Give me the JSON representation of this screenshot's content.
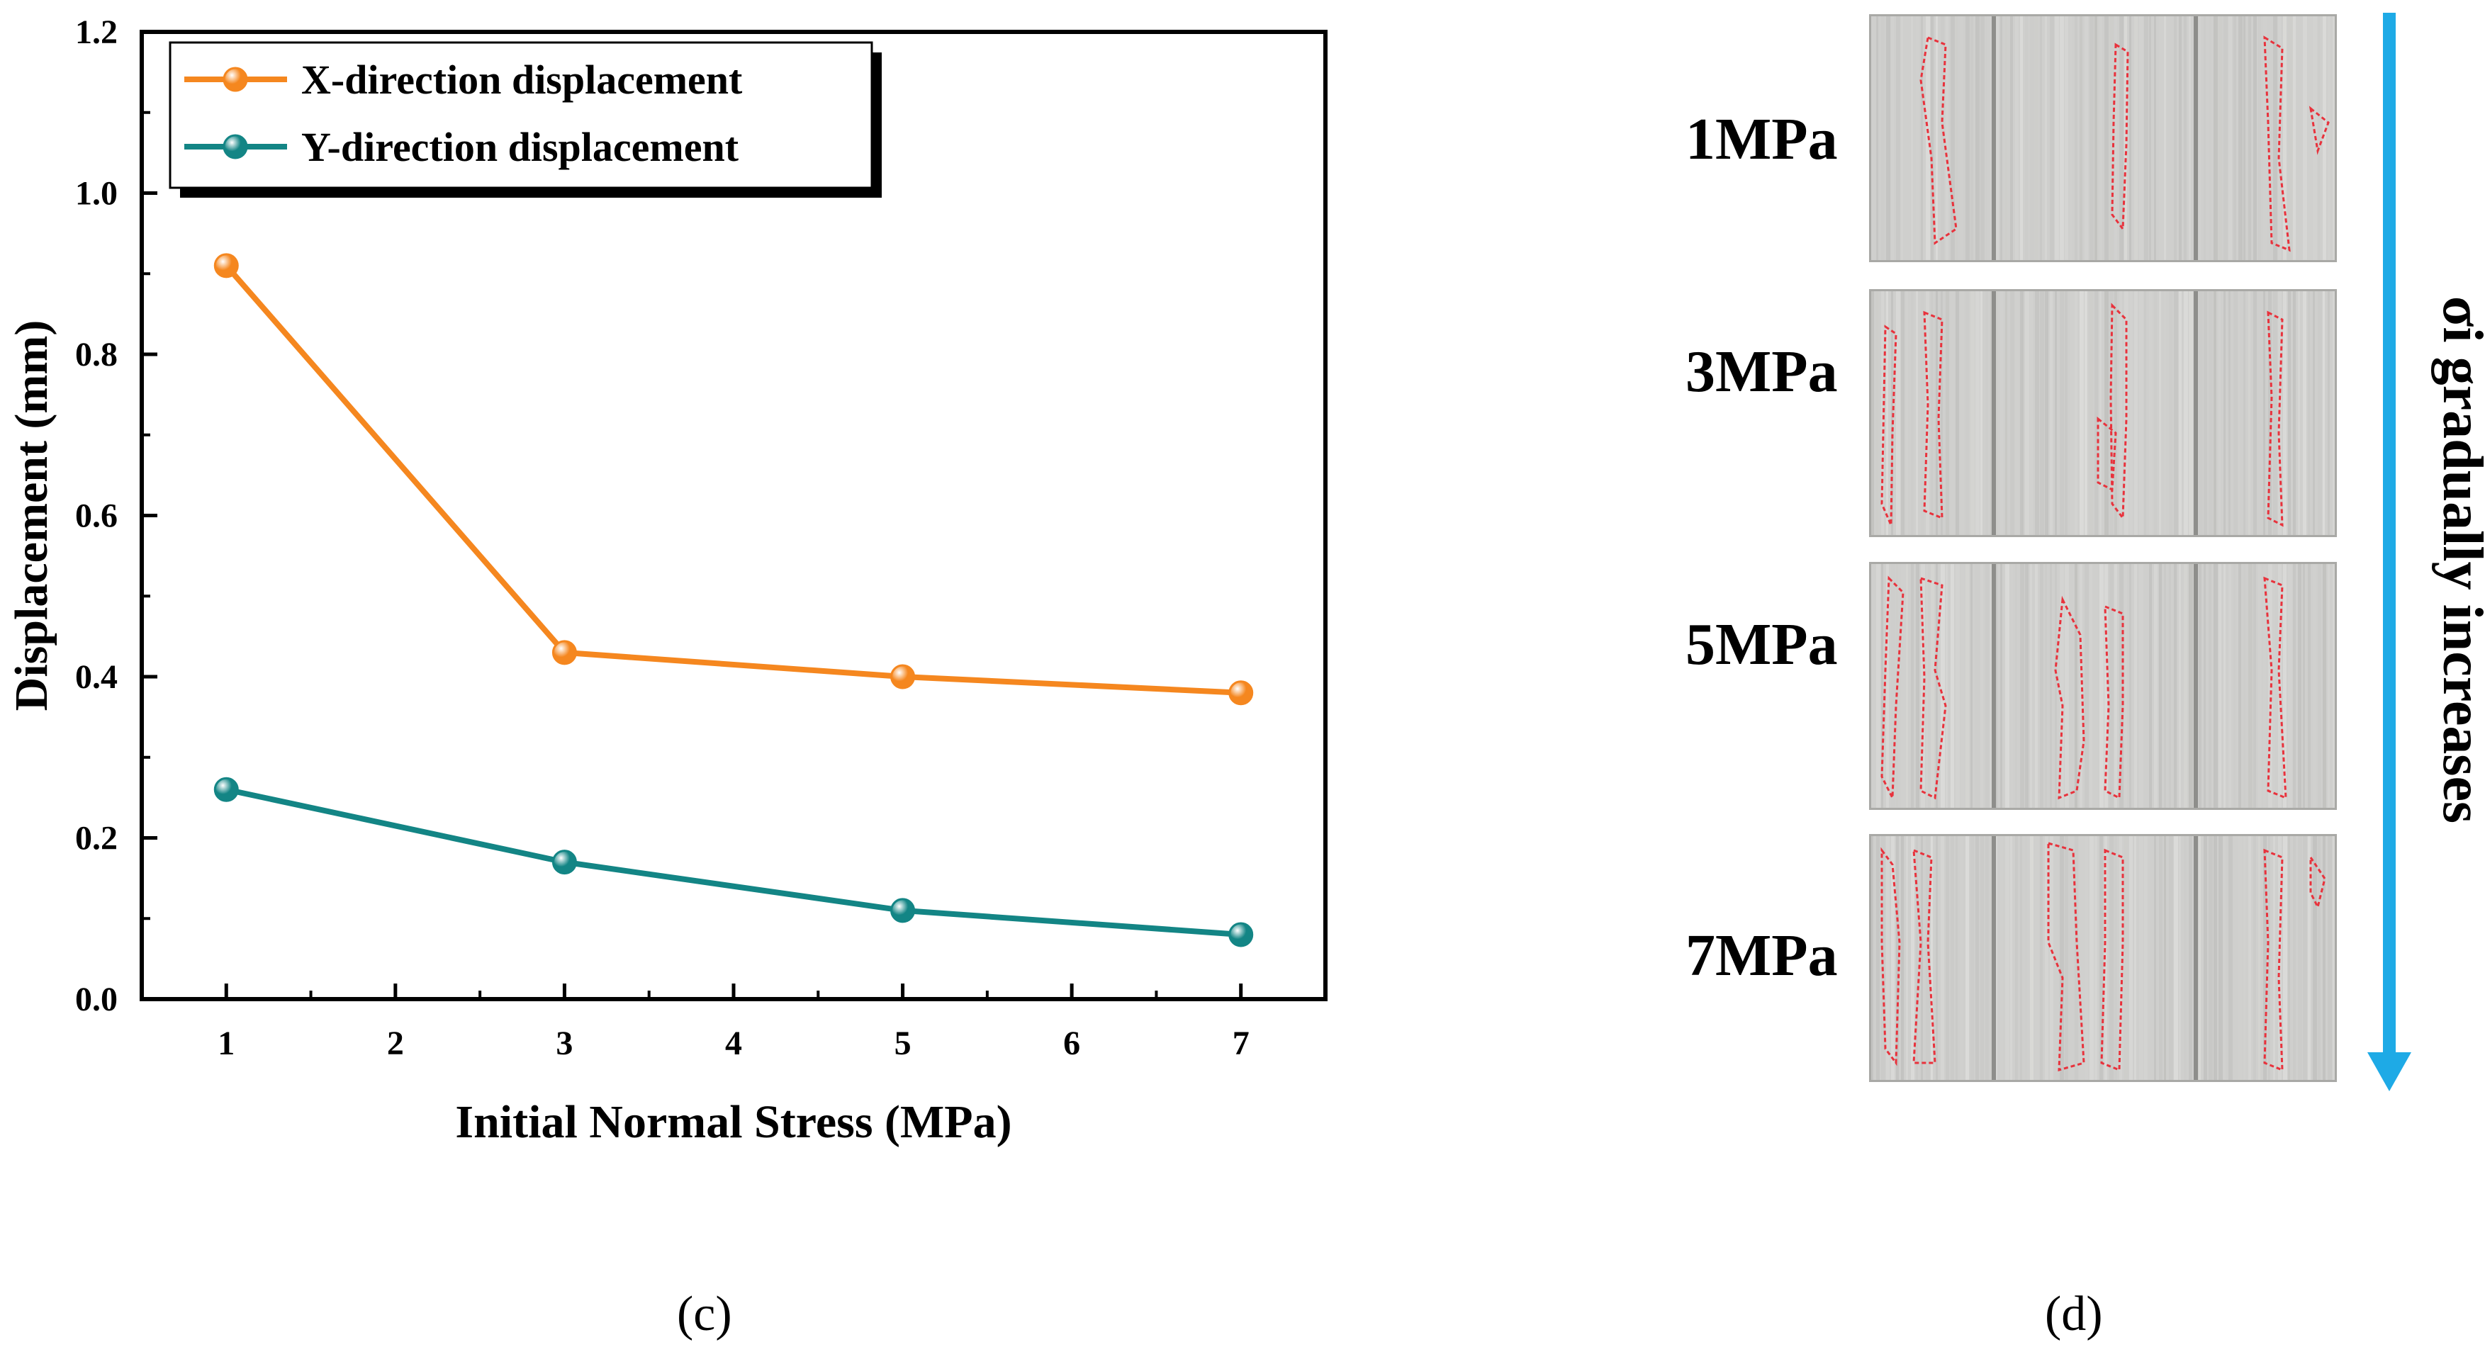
{
  "chart_data": {
    "type": "line",
    "title": "",
    "xlabel": "Initial Normal Stress (MPa)",
    "ylabel": "Displacement (mm)",
    "xlim": [
      0.5,
      7.5
    ],
    "ylim": [
      0.0,
      1.2
    ],
    "xticks": [
      1,
      2,
      3,
      4,
      5,
      6,
      7
    ],
    "yticks": [
      0.0,
      0.2,
      0.4,
      0.6,
      0.8,
      1.0,
      1.2
    ],
    "xtick_labels": [
      "1",
      "2",
      "3",
      "4",
      "5",
      "6",
      "7"
    ],
    "ytick_labels": [
      "0.0",
      "0.2",
      "0.4",
      "0.6",
      "0.8",
      "1.0",
      "1.2"
    ],
    "grid": false,
    "legend_position": "top-left",
    "x": [
      1,
      3,
      5,
      7
    ],
    "series": [
      {
        "name": "X-direction displacement",
        "color": "#F5871F",
        "values": [
          0.91,
          0.43,
          0.4,
          0.38
        ]
      },
      {
        "name": "Y-direction displacement",
        "color": "#138585",
        "values": [
          0.26,
          0.17,
          0.11,
          0.08
        ]
      }
    ]
  },
  "captions": {
    "left": "(c)",
    "right": "(d)"
  },
  "photos": {
    "labels": [
      "1MPa",
      "3MPa",
      "5MPa",
      "7MPa"
    ],
    "arrow_text": "σi gradually increases",
    "arrow_color": "#1EAAE6",
    "marking_color": "#E8323C"
  }
}
